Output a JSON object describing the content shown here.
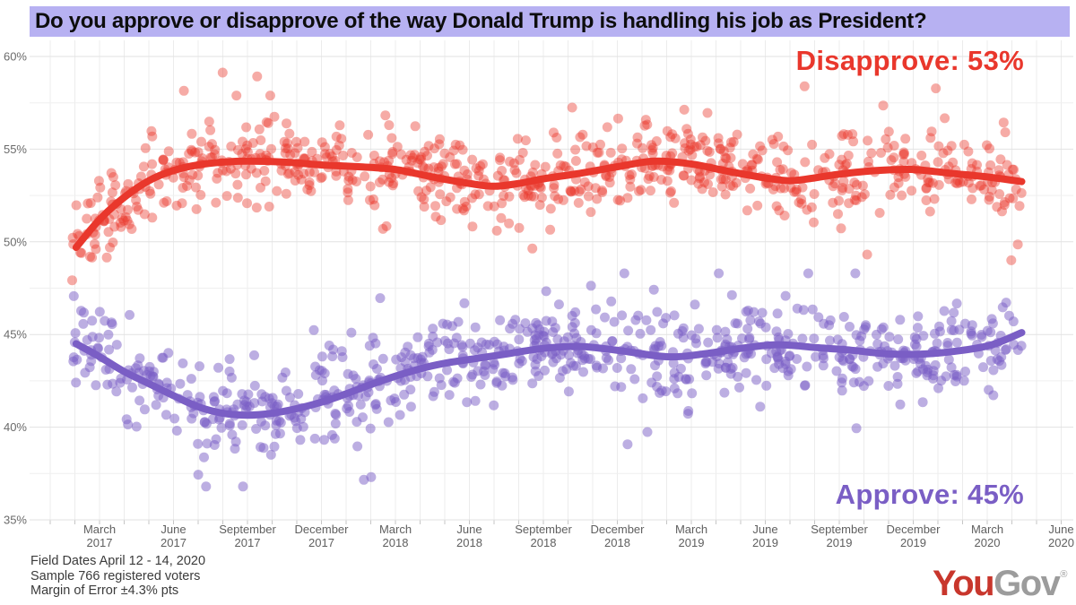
{
  "title": "Do you approve or disapprove of the way Donald Trump is handling his job as President?",
  "annotations": {
    "disapprove_label": "Disapprove: 53%",
    "approve_label": "Approve: 45%"
  },
  "footer": {
    "line1": "Field Dates April 12 - 14, 2020",
    "line2": "Sample 766 registered voters",
    "line3": "Margin of Error ±4.3% pts"
  },
  "logo": {
    "part1": "You",
    "part2": "Gov",
    "reg_mark": "®"
  },
  "colors": {
    "banner_bg": "#b7b1f2",
    "disapprove": "#e9372c",
    "approve": "#7a5ec5",
    "grid_major": "#e2e2e2",
    "grid_minor": "#efefef",
    "grid_vertical": "#ececec",
    "tick_mark": "#c6c6c6",
    "axis_text": "#666666",
    "footer_text": "#3b3b3b",
    "logo_red": "#c8362c",
    "logo_gray": "#9c9c9c"
  },
  "chart_data": {
    "type": "scatter",
    "title": "Do you approve or disapprove of the way Donald Trump is handling his job as President?",
    "ylabel": "",
    "xlabel": "",
    "grid": true,
    "y_axis": {
      "unit": "%",
      "range": [
        35,
        60
      ],
      "major_ticks": [
        60,
        55,
        50,
        45,
        40,
        35
      ],
      "minor_step": 2.5
    },
    "x_axis": {
      "note": "month index m: Jan 2017 = 0",
      "month_range": [
        0.85,
        39.4
      ],
      "labels": [
        {
          "month": "March",
          "year": "2017",
          "m": 2
        },
        {
          "month": "June",
          "year": "2017",
          "m": 5
        },
        {
          "month": "September",
          "year": "2017",
          "m": 8
        },
        {
          "month": "December",
          "year": "2017",
          "m": 11
        },
        {
          "month": "March",
          "year": "2018",
          "m": 14
        },
        {
          "month": "June",
          "year": "2018",
          "m": 17
        },
        {
          "month": "September",
          "year": "2018",
          "m": 20
        },
        {
          "month": "December",
          "year": "2018",
          "m": 23
        },
        {
          "month": "March",
          "year": "2019",
          "m": 26
        },
        {
          "month": "June",
          "year": "2019",
          "m": 29
        },
        {
          "month": "September",
          "year": "2019",
          "m": 32
        },
        {
          "month": "December",
          "year": "2019",
          "m": 35
        },
        {
          "month": "March",
          "year": "2020",
          "m": 38
        },
        {
          "month": "June",
          "year": "2020",
          "m": 41
        }
      ]
    },
    "series": [
      {
        "name": "Disapprove",
        "final_value": 53,
        "color": "#e9372c",
        "dot_opacity": 0.42,
        "seed": 42,
        "value_clip": [
          46.5,
          59.3
        ],
        "trend": [
          [
            1.05,
            49.7
          ],
          [
            2,
            51.2
          ],
          [
            3,
            52.4
          ],
          [
            4,
            53.3
          ],
          [
            5,
            53.85
          ],
          [
            6,
            54.15
          ],
          [
            7,
            54.3
          ],
          [
            8,
            54.35
          ],
          [
            9.5,
            54.3
          ],
          [
            11,
            54.15
          ],
          [
            12.5,
            54.05
          ],
          [
            14,
            53.9
          ],
          [
            15.5,
            53.5
          ],
          [
            17,
            53.15
          ],
          [
            18,
            53.0
          ],
          [
            19,
            53.15
          ],
          [
            20,
            53.4
          ],
          [
            21.5,
            53.7
          ],
          [
            23,
            54.05
          ],
          [
            24.5,
            54.35
          ],
          [
            26,
            54.2
          ],
          [
            27.5,
            53.8
          ],
          [
            29,
            53.45
          ],
          [
            30,
            53.3
          ],
          [
            31,
            53.45
          ],
          [
            32,
            53.65
          ],
          [
            33.5,
            53.85
          ],
          [
            35,
            53.9
          ],
          [
            36.5,
            53.7
          ],
          [
            38,
            53.5
          ],
          [
            39.4,
            53.25
          ]
        ]
      },
      {
        "name": "Approve",
        "final_value": 45,
        "color": "#7a5ec5",
        "dot_opacity": 0.5,
        "seed": 1337,
        "value_clip": [
          36.8,
          48.3
        ],
        "trend": [
          [
            1.05,
            44.5
          ],
          [
            2,
            43.8
          ],
          [
            3,
            43.0
          ],
          [
            4,
            42.35
          ],
          [
            5,
            41.7
          ],
          [
            6,
            41.1
          ],
          [
            7,
            40.75
          ],
          [
            8,
            40.65
          ],
          [
            9,
            40.75
          ],
          [
            10,
            41.0
          ],
          [
            11,
            41.35
          ],
          [
            12,
            41.8
          ],
          [
            13,
            42.3
          ],
          [
            14,
            42.75
          ],
          [
            15,
            43.15
          ],
          [
            16,
            43.45
          ],
          [
            17,
            43.65
          ],
          [
            18.5,
            43.95
          ],
          [
            20,
            44.25
          ],
          [
            21.5,
            44.35
          ],
          [
            23,
            44.15
          ],
          [
            25,
            43.8
          ],
          [
            26.5,
            43.95
          ],
          [
            28,
            44.25
          ],
          [
            29.5,
            44.45
          ],
          [
            31,
            44.3
          ],
          [
            32.5,
            44.15
          ],
          [
            34,
            43.95
          ],
          [
            35.5,
            43.95
          ],
          [
            37,
            44.15
          ],
          [
            38.2,
            44.45
          ],
          [
            39.4,
            45.1
          ]
        ]
      }
    ],
    "scatter_style": {
      "points_per_series": 780,
      "dot_radius": 5.5,
      "noise_sd": 1.05,
      "outlier_fraction": 0.12,
      "outlier_sd": 2.2,
      "trend_linewidth": 8
    }
  }
}
